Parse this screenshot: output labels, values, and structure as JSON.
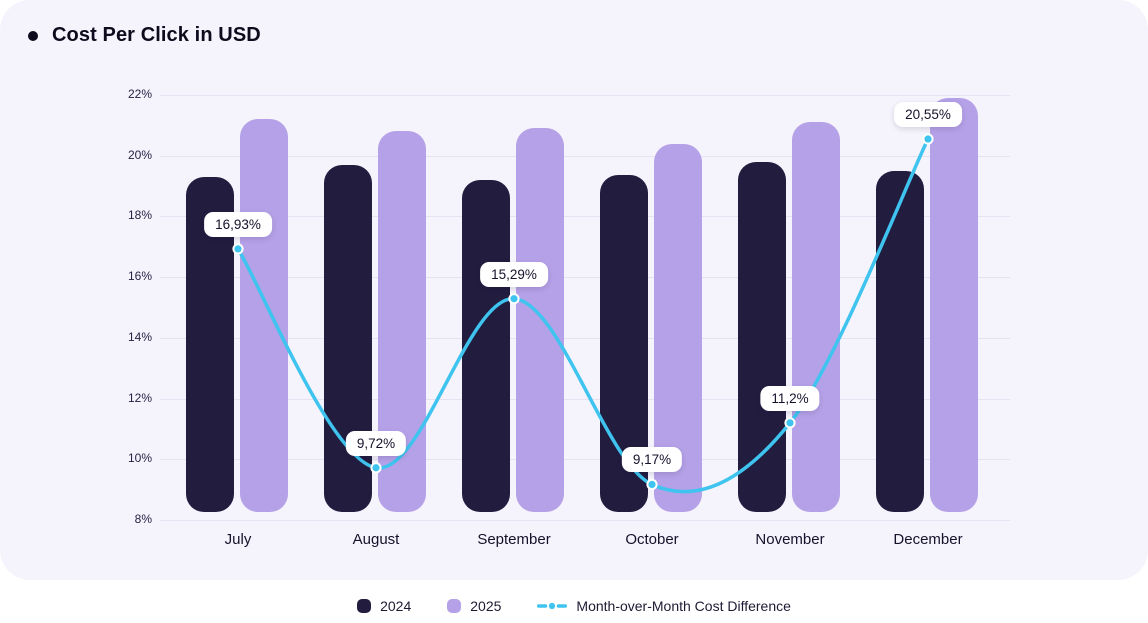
{
  "title": "Cost Per Click in USD",
  "legend": {
    "items": [
      {
        "label": "2024",
        "color": "#221C3F",
        "marker": "rounded-square"
      },
      {
        "label": "2025",
        "color": "#B5A1E7",
        "marker": "rounded-square"
      },
      {
        "label": "Month-over-Month Cost Difference",
        "color": "#3EC4EF",
        "marker": "dash-dot-line"
      }
    ]
  },
  "chart_data": {
    "type": "bar",
    "title": "Cost Per Click in USD",
    "categories": [
      "July",
      "August",
      "September",
      "October",
      "November",
      "December"
    ],
    "series": [
      {
        "name": "2024",
        "kind": "bar",
        "color": "#221C3F",
        "values": [
          19.3,
          19.7,
          19.2,
          19.35,
          19.8,
          19.5
        ]
      },
      {
        "name": "2025",
        "kind": "bar",
        "color": "#B5A1E7",
        "values": [
          21.2,
          20.8,
          20.9,
          20.4,
          21.1,
          21.9
        ]
      },
      {
        "name": "Month-over-Month Cost Difference",
        "kind": "line",
        "color": "#3EC4EF",
        "values": [
          16.93,
          9.72,
          15.29,
          9.17,
          11.2,
          20.55
        ],
        "point_labels": [
          "16,93%",
          "9,72%",
          "15,29%",
          "9,17%",
          "11,2%",
          "20,55%"
        ]
      }
    ],
    "ylim": [
      8,
      22
    ],
    "ytick_step": 2,
    "ytick_labels": [
      "8%",
      "10%",
      "12%",
      "14%",
      "16%",
      "18%",
      "20%",
      "22%"
    ],
    "grid": true,
    "legend_position": "bottom"
  },
  "colors": {
    "card_bg": "#F5F3FC",
    "grid": "#E7E2F2",
    "title_text": "#0D0B1C",
    "axis_text": "#251F42",
    "label_bg": "#FFFFFF",
    "label_text": "#16122B"
  }
}
